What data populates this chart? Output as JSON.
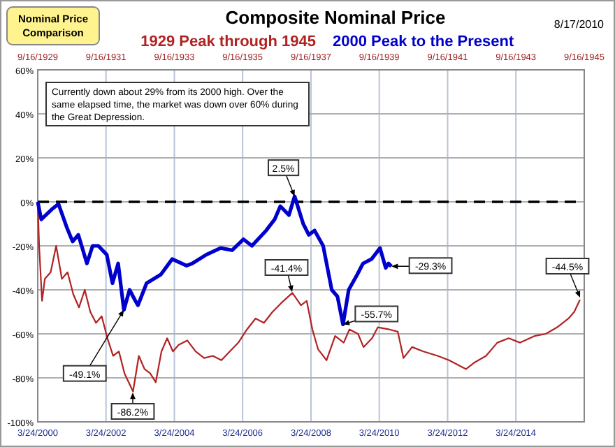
{
  "chart_data": {
    "type": "line",
    "title": "Composite Nominal Price",
    "xlim": [
      "2000-03-24",
      "2016-03-24"
    ],
    "xticks": [
      {
        "value": "2000-03-24",
        "label": "3/24/2000"
      },
      {
        "value": "2002-03-24",
        "label": "3/24/2002"
      },
      {
        "value": "2004-03-24",
        "label": "3/24/2004"
      },
      {
        "value": "2006-03-24",
        "label": "3/24/2006"
      },
      {
        "value": "2008-03-24",
        "label": "3/24/2008"
      },
      {
        "value": "2010-03-24",
        "label": "3/24/2010"
      },
      {
        "value": "2012-03-24",
        "label": "3/24/2012"
      },
      {
        "value": "2014-03-24",
        "label": "3/24/2014"
      }
    ],
    "x2lim": [
      "1929-09-16",
      "1945-09-16"
    ],
    "x2ticks": [
      {
        "value": "1929-09-16",
        "label": "9/16/1929"
      },
      {
        "value": "1931-09-16",
        "label": "9/16/1931"
      },
      {
        "value": "1933-09-16",
        "label": "9/16/1933"
      },
      {
        "value": "1935-09-16",
        "label": "9/16/1935"
      },
      {
        "value": "1937-09-16",
        "label": "9/16/1937"
      },
      {
        "value": "1939-09-16",
        "label": "9/16/1939"
      },
      {
        "value": "1941-09-16",
        "label": "9/16/1941"
      },
      {
        "value": "1943-09-16",
        "label": "9/16/1943"
      },
      {
        "value": "1945-09-16",
        "label": "9/16/1945"
      }
    ],
    "ylim": [
      -100,
      60
    ],
    "yticks": [
      {
        "value": 60,
        "label": "60%"
      },
      {
        "value": 40,
        "label": "40%"
      },
      {
        "value": 20,
        "label": "20%"
      },
      {
        "value": 0,
        "label": "0%"
      },
      {
        "value": -20,
        "label": "-20%"
      },
      {
        "value": -40,
        "label": "-40%"
      },
      {
        "value": -60,
        "label": "-60%"
      },
      {
        "value": -80,
        "label": "-80%"
      },
      {
        "value": -100,
        "label": "-100%"
      }
    ],
    "grid": true,
    "legend": "top",
    "marker": "none",
    "line_style": "solid",
    "ref_lines": [
      {
        "axis": "y",
        "value": 0,
        "color": "#000000",
        "line_style": "dashed"
      }
    ],
    "series": [
      {
        "name": "1929 Peak through 1945",
        "color": "#b22222",
        "axis": "x2",
        "x": [
          "1929-09-16",
          "1929-10",
          "1929-11",
          "1929-12",
          "1930-02",
          "1930-04",
          "1930-06",
          "1930-08",
          "1930-10",
          "1930-12",
          "1931-02",
          "1931-04",
          "1931-06",
          "1931-08",
          "1931-10",
          "1931-12",
          "1932-02",
          "1932-04",
          "1932-07",
          "1932-09",
          "1932-11",
          "1933-01",
          "1933-03",
          "1933-05",
          "1933-07",
          "1933-09",
          "1933-11",
          "1934-02",
          "1934-05",
          "1934-08",
          "1934-11",
          "1935-02",
          "1935-05",
          "1935-08",
          "1935-11",
          "1936-02",
          "1936-05",
          "1936-08",
          "1936-11",
          "1937-03",
          "1937-06",
          "1937-08",
          "1937-10",
          "1937-12",
          "1938-03",
          "1938-06",
          "1938-09",
          "1938-11",
          "1939-02",
          "1939-04",
          "1939-07",
          "1939-09",
          "1940-01",
          "1940-04",
          "1940-06",
          "1940-09",
          "1941-01",
          "1941-06",
          "1941-10",
          "1942-04",
          "1942-07",
          "1942-11",
          "1943-03",
          "1943-07",
          "1943-11",
          "1944-04",
          "1944-08",
          "1944-12",
          "1945-04",
          "1945-06",
          "1945-08"
        ],
        "values": [
          0,
          -20,
          -45,
          -35,
          -32,
          -20,
          -35,
          -32,
          -42,
          -48,
          -40,
          -50,
          -55,
          -52,
          -62,
          -70,
          -68,
          -78,
          -86.2,
          -70,
          -76,
          -78,
          -82,
          -68,
          -62,
          -68,
          -65,
          -63,
          -68,
          -71,
          -70,
          -72,
          -68,
          -64,
          -58,
          -53,
          -55,
          -50,
          -46,
          -41.4,
          -47,
          -45,
          -58,
          -67,
          -72,
          -61,
          -64,
          -58,
          -60,
          -66,
          -62,
          -57,
          -58,
          -59,
          -71,
          -66,
          -68,
          -70,
          -72,
          -76,
          -73,
          -70,
          -64,
          -62,
          -64,
          -61,
          -60,
          -57,
          -53,
          -50,
          -44.5
        ]
      },
      {
        "name": "2000 Peak to the Present",
        "color": "#0000cc",
        "x": [
          "2000-03-24",
          "2000-05",
          "2000-09",
          "2000-11",
          "2001-02",
          "2001-04",
          "2001-06",
          "2001-09",
          "2001-11",
          "2002-01",
          "2002-04",
          "2002-06",
          "2002-08",
          "2002-10",
          "2002-12",
          "2003-02",
          "2003-03",
          "2003-06",
          "2003-11",
          "2004-03",
          "2004-08",
          "2004-10",
          "2005-03",
          "2005-08",
          "2005-12",
          "2006-04",
          "2006-07",
          "2006-12",
          "2007-03",
          "2007-05",
          "2007-08",
          "2007-10",
          "2008-01",
          "2008-03",
          "2008-05",
          "2008-08",
          "2008-11",
          "2009-01",
          "2009-03",
          "2009-05",
          "2009-08",
          "2009-10",
          "2010-01",
          "2010-04",
          "2010-06",
          "2010-07",
          "2010-08"
        ],
        "values": [
          0,
          -8,
          -3,
          -1,
          -12,
          -18,
          -15,
          -28,
          -20,
          -20,
          -24,
          -37,
          -28,
          -49.1,
          -40,
          -45,
          -47,
          -37,
          -33,
          -26,
          -29,
          -28,
          -24,
          -21,
          -22,
          -17,
          -20,
          -13,
          -8,
          -2,
          -6,
          2.5,
          -10,
          -15,
          -13,
          -20,
          -40,
          -43,
          -55.7,
          -40,
          -33,
          -28,
          -26,
          -21,
          -30,
          -28,
          -29.3
        ]
      }
    ],
    "annotations": [
      "Nominal Price Comparison",
      "8/17/2010",
      "Currently down about 29% from its 2000 high. Over the same elapsed time, the market was down over 60% during the Great Depression.",
      {
        "text": "-49.1%",
        "x": "2002-10",
        "y": -49.1
      },
      "-86.2%",
      {
        "text": "2.5%",
        "x": "2007-10",
        "y": 2.5
      },
      "-41.4%",
      {
        "text": "-55.7%",
        "x": "2009-03",
        "y": -55.7
      },
      {
        "text": "-29.3%",
        "x": "2010-08",
        "y": -29.3
      },
      "-44.5%"
    ]
  }
}
